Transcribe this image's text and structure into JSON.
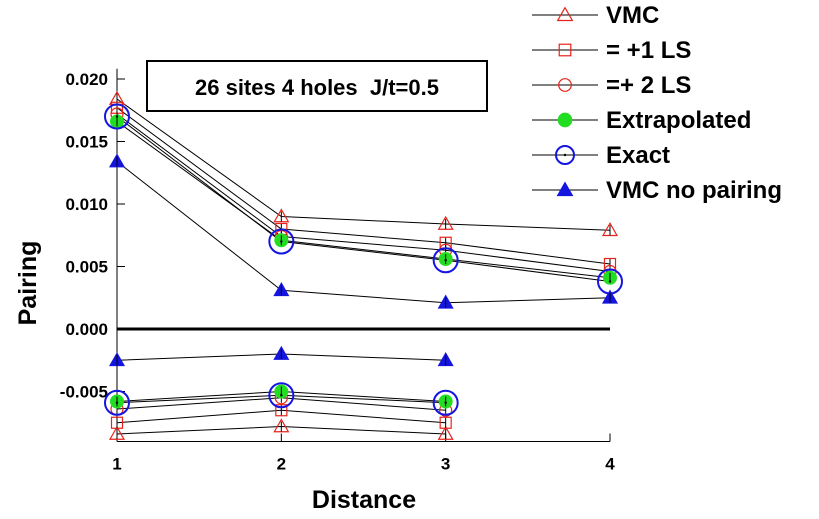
{
  "chart_data": {
    "type": "line",
    "title": "",
    "annotation": "26 sites 4 holes  J/t=0.5",
    "xlabel": "Distance",
    "ylabel": "Pairing",
    "xlim": [
      1,
      4
    ],
    "ylim": [
      -0.009,
      0.0205
    ],
    "x_ticks": [
      "1",
      "2",
      "3",
      "4"
    ],
    "y_ticks": [
      "0.020",
      "0.015",
      "0.010",
      "0.005",
      "0.000",
      "-0.005"
    ],
    "y_tick_values": [
      0.02,
      0.015,
      0.01,
      0.005,
      0.0,
      -0.005
    ],
    "grid": false,
    "legend_position": "top-right",
    "series": [
      {
        "name": "VMC",
        "marker": "triangle-open",
        "color": "#e8231b",
        "branches": [
          {
            "x": [
              1,
              2,
              3,
              4
            ],
            "y": [
              0.0184,
              0.009,
              0.0084,
              0.0079
            ]
          },
          {
            "x": [
              1,
              2,
              3
            ],
            "y": [
              -0.0084,
              -0.0078,
              -0.0084
            ]
          }
        ]
      },
      {
        "name": "= +1 LS",
        "marker": "square-open",
        "color": "#e8231b",
        "branches": [
          {
            "x": [
              1,
              2,
              3,
              4
            ],
            "y": [
              0.0177,
              0.008,
              0.0069,
              0.0052
            ]
          },
          {
            "x": [
              1,
              2,
              3
            ],
            "y": [
              -0.0075,
              -0.0065,
              -0.0075
            ]
          }
        ]
      },
      {
        "name": "=+ 2 LS",
        "marker": "circle-open",
        "color": "#e8231b",
        "branches": [
          {
            "x": [
              1,
              2,
              3,
              4
            ],
            "y": [
              0.0172,
              0.0074,
              0.0063,
              0.0046
            ]
          },
          {
            "x": [
              1,
              2,
              3
            ],
            "y": [
              -0.0064,
              -0.0055,
              -0.0065
            ]
          }
        ]
      },
      {
        "name": "Extrapolated",
        "marker": "circle-filled",
        "color": "#22dd22",
        "branches": [
          {
            "x": [
              1,
              2,
              3,
              4
            ],
            "y": [
              0.0166,
              0.0071,
              0.0056,
              0.0041
            ]
          },
          {
            "x": [
              1,
              2,
              3
            ],
            "y": [
              -0.0058,
              -0.005,
              -0.0058
            ]
          }
        ]
      },
      {
        "name": "Exact",
        "marker": "circle-dot",
        "color": "#1515e0",
        "branches": [
          {
            "x": [
              1,
              2,
              3,
              4
            ],
            "y": [
              0.017,
              0.007,
              0.0055,
              0.0038
            ]
          },
          {
            "x": [
              1,
              2,
              3
            ],
            "y": [
              -0.0059,
              -0.0053,
              -0.0059
            ]
          }
        ]
      },
      {
        "name": "VMC no pairing",
        "marker": "triangle-filled",
        "color": "#1515e0",
        "branches": [
          {
            "x": [
              1,
              2,
              3,
              4
            ],
            "y": [
              0.0134,
              0.0031,
              0.0021,
              0.0025
            ]
          },
          {
            "x": [
              1,
              2,
              3
            ],
            "y": [
              -0.0025,
              -0.002,
              -0.0025
            ]
          }
        ]
      }
    ]
  }
}
